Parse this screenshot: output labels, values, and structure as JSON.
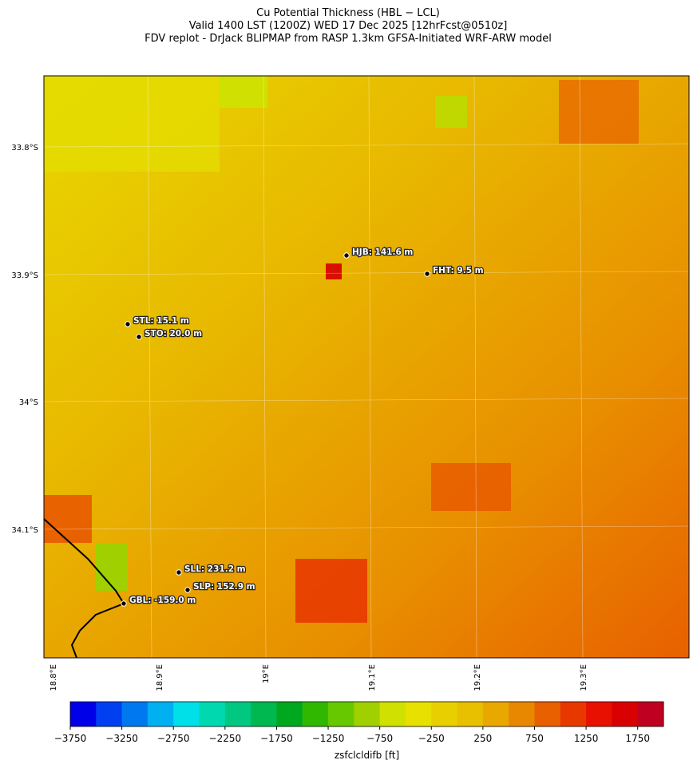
{
  "title": [
    "Cu Potential Thickness (HBL − LCL)",
    "Valid 1400 LST (1200Z) WED 17 Dec 2025 [12hrFcst@0510z]",
    "FDV replot - DrJack BLIPMAP from RASP 1.3km GFSA-Initiated WRF-ARW model"
  ],
  "lat_labels": [
    "33.8°S",
    "33.9°S",
    "34°S",
    "34.1°S"
  ],
  "lon_labels": [
    "18.8°E",
    "18.9°E",
    "19°E",
    "19.1°E",
    "19.2°E",
    "19.3°E"
  ],
  "stations": [
    "HJB: 141.6 m",
    "FHT: 9.5 m",
    "STL: 15.1 m",
    "STO: 20.0 m",
    "SLL: 231.2 m",
    "SLP: 152.9 m",
    "GBL: -159.0 m"
  ],
  "colorbar": {
    "label": "zsfclcldifb [ft]",
    "lim": [
      -3750,
      2000
    ],
    "colors": [
      "#0000e8",
      "#0040f0",
      "#0078f0",
      "#00b0f0",
      "#00e0e8",
      "#00d8b0",
      "#00c880",
      "#00b850",
      "#00a820",
      "#30b800",
      "#68c800",
      "#a0d000",
      "#d0e000",
      "#e8e000",
      "#e8d000",
      "#e8c000",
      "#e8a800",
      "#e88800",
      "#e86000",
      "#e83800",
      "#e81000",
      "#d80000",
      "#c00020"
    ],
    "ticks": [
      {
        "value": -3750,
        "label": "−3750"
      },
      {
        "value": -3250,
        "label": "−3250"
      },
      {
        "value": -2750,
        "label": "−2750"
      },
      {
        "value": -2250,
        "label": "−2250"
      },
      {
        "value": -1750,
        "label": "−1750"
      },
      {
        "value": -1250,
        "label": "−1250"
      },
      {
        "value": -750,
        "label": "−750"
      },
      {
        "value": -250,
        "label": "−250"
      },
      250,
      750,
      1250,
      1750
    ]
  }
}
